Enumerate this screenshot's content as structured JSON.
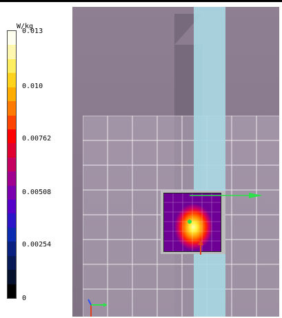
{
  "legend": {
    "unit": "W/kg",
    "ticks": [
      "0.013",
      "0.010",
      "0.00762",
      "0.00508",
      "0.00254",
      "0"
    ],
    "colors": [
      "#fffff0",
      "#fff6b0",
      "#ffef60",
      "#ffd21e",
      "#ffac00",
      "#ff7a00",
      "#ff4400",
      "#ff0000",
      "#e00030",
      "#c40060",
      "#a00090",
      "#7a00b0",
      "#5500c8",
      "#2a16c8",
      "#0b2cb0",
      "#0a2080",
      "#081a55",
      "#06112d",
      "#000000"
    ]
  },
  "viewport": {
    "grid_color": "#ffffff",
    "accent_colors": {
      "pillar_light": "#a9d7e3",
      "axis_green": "#2ee04a",
      "axis_red": "#e04020",
      "axis_blue": "#2a52ff"
    }
  }
}
